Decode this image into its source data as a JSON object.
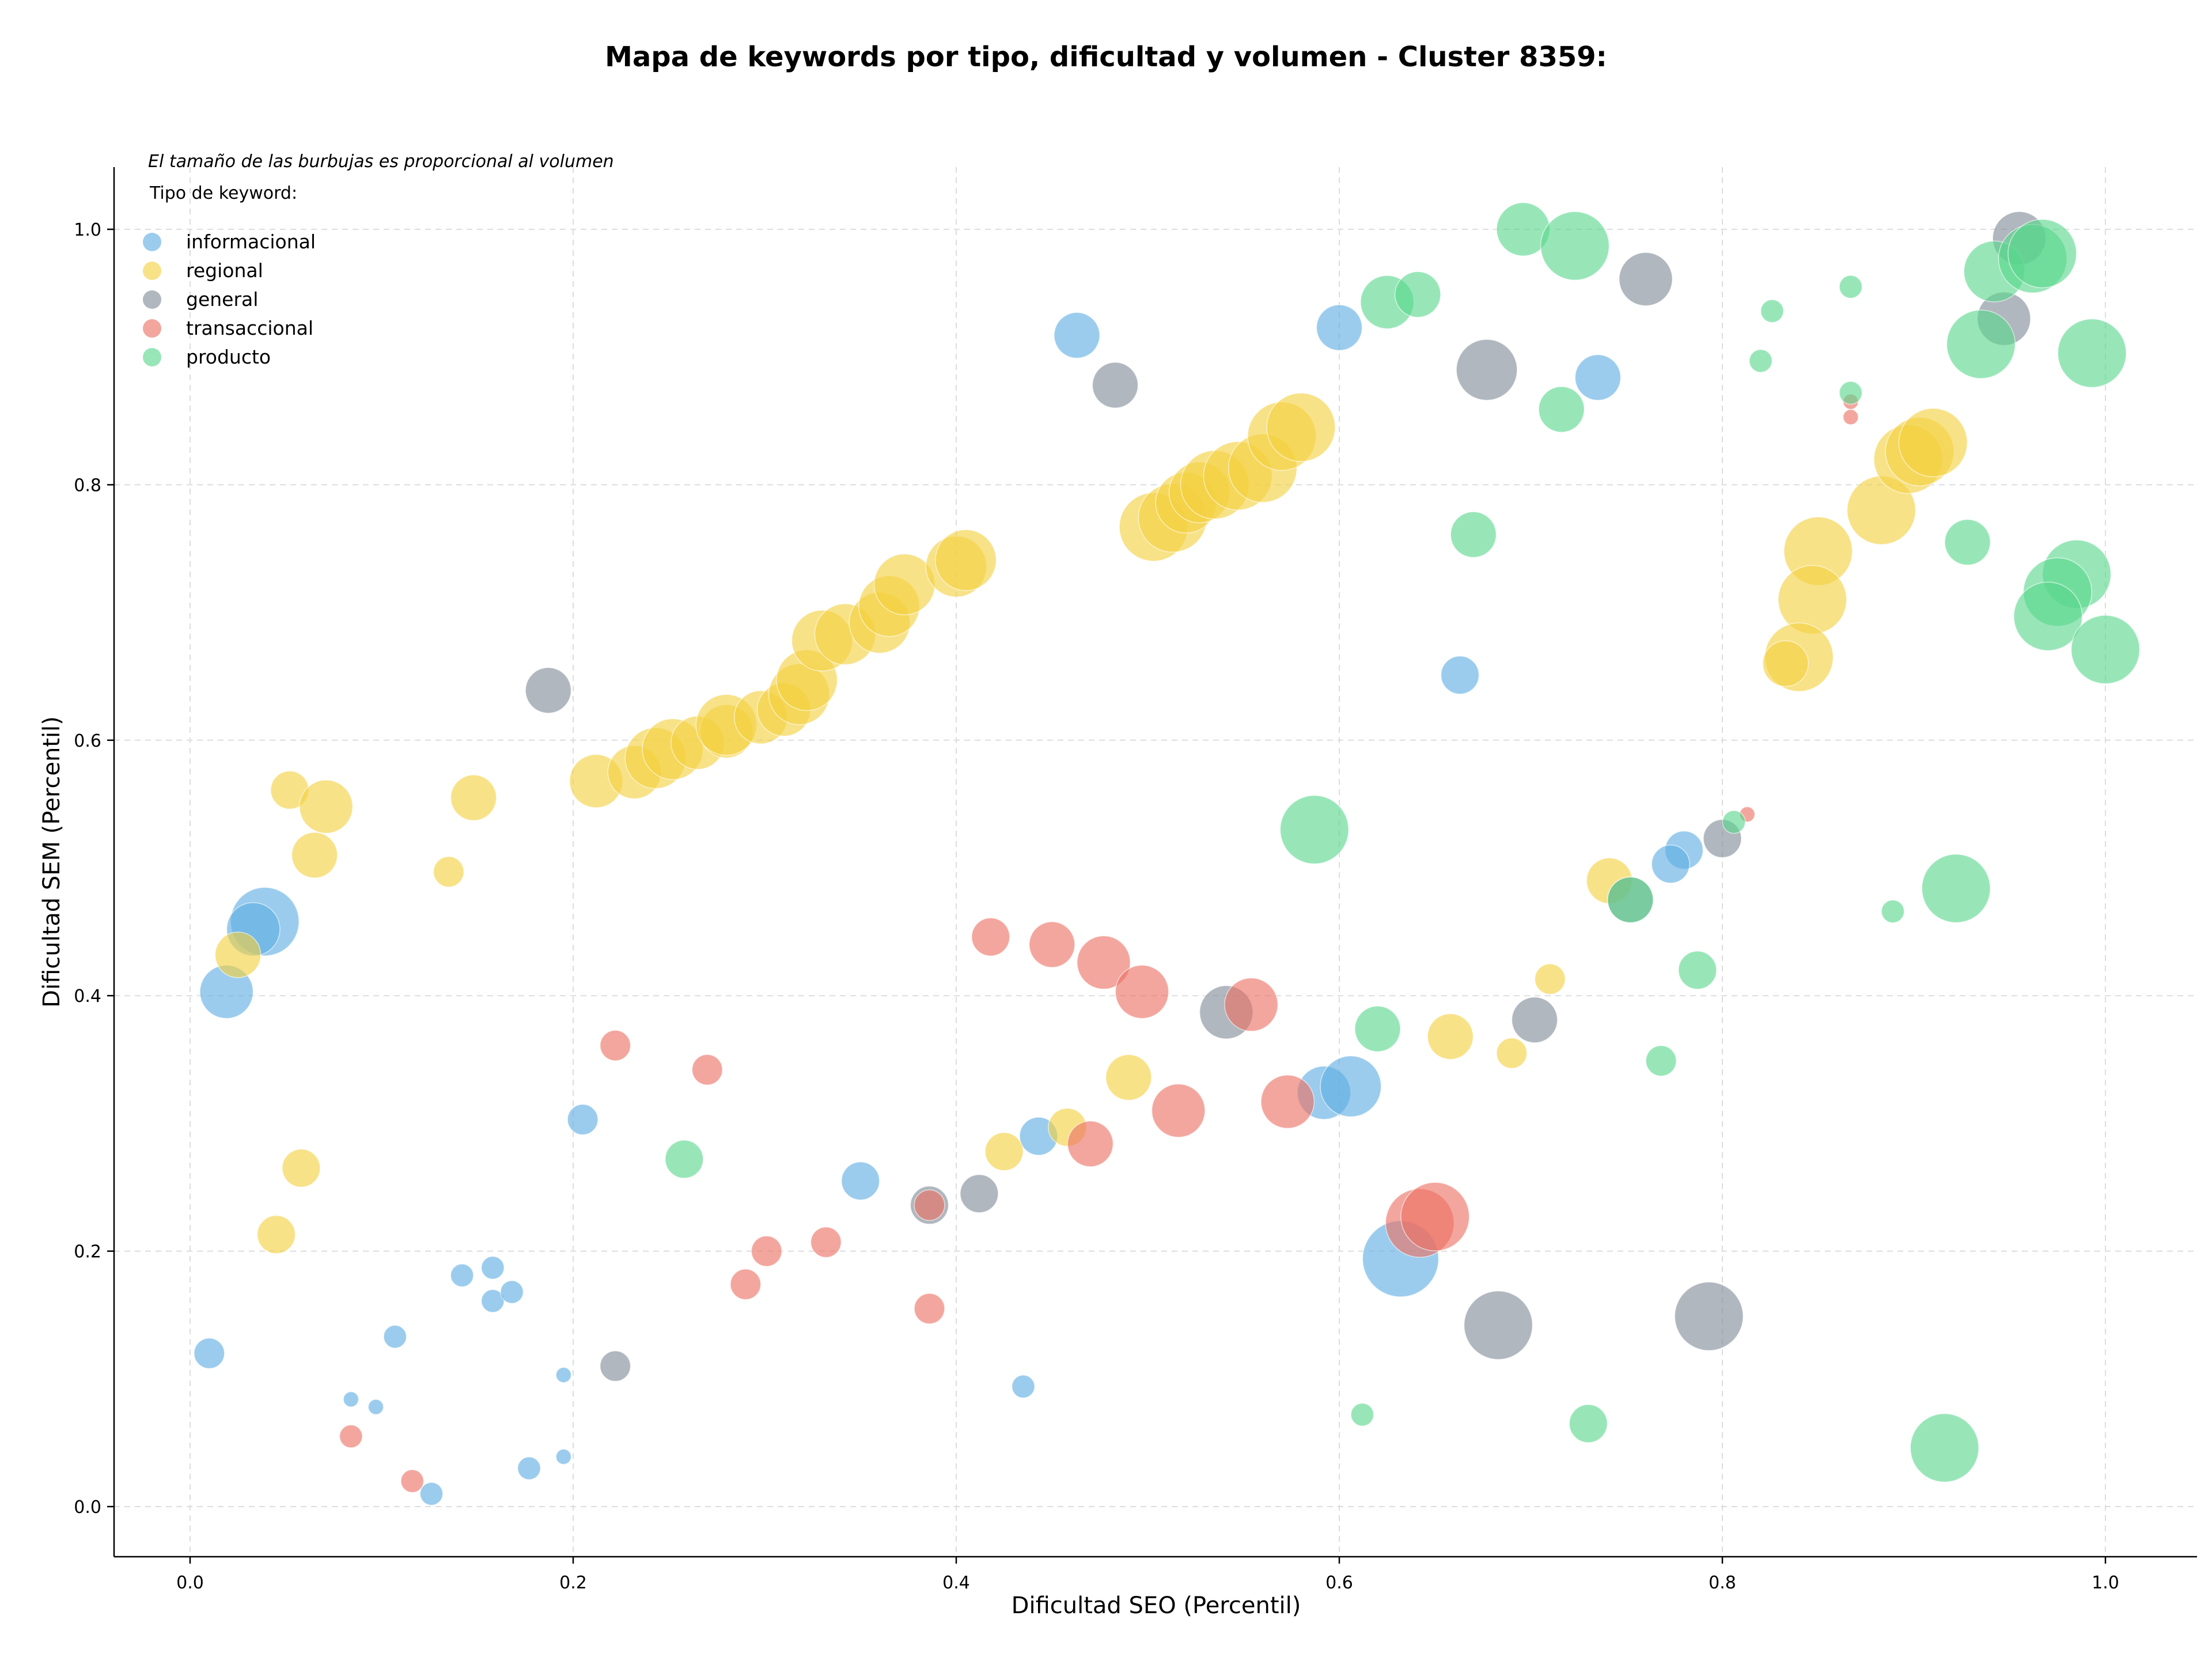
{
  "chart_data": {
    "type": "scatter",
    "title": "Mapa de keywords por tipo, dificultad y volumen - Cluster 8359:",
    "xlabel": "Dificultad SEO (Percentil)",
    "ylabel": "Dificultad SEM (Percentil)",
    "xlim": [
      -0.04,
      1.05
    ],
    "ylim": [
      -0.04,
      1.05
    ],
    "x_ticks": [
      "0.0",
      "0.2",
      "0.4",
      "0.6",
      "0.8",
      "1.0"
    ],
    "y_ticks": [
      "0.0",
      "0.2",
      "0.4",
      "0.6",
      "0.8",
      "1.0"
    ],
    "grid": true,
    "legend_placement": "top-left",
    "legend_note": "El tamaño de las burbujas es proporcional al volumen",
    "legend_title": "Tipo de keyword:",
    "size_unit": "relative volume",
    "series": [
      {
        "name": "informacional",
        "color": "#5DADE2",
        "points": [
          [
            0.463,
            0.917,
            6
          ],
          [
            0.6,
            0.923,
            6
          ],
          [
            0.735,
            0.884,
            6
          ],
          [
            0.663,
            0.651,
            5
          ],
          [
            0.039,
            0.458,
            9
          ],
          [
            0.033,
            0.452,
            7
          ],
          [
            0.019,
            0.403,
            7
          ],
          [
            0.205,
            0.303,
            4
          ],
          [
            0.443,
            0.29,
            5
          ],
          [
            0.592,
            0.324,
            7
          ],
          [
            0.606,
            0.329,
            8
          ],
          [
            0.35,
            0.255,
            5
          ],
          [
            0.01,
            0.12,
            4
          ],
          [
            0.107,
            0.133,
            3
          ],
          [
            0.142,
            0.181,
            3
          ],
          [
            0.158,
            0.187,
            3
          ],
          [
            0.158,
            0.161,
            3
          ],
          [
            0.168,
            0.168,
            3
          ],
          [
            0.084,
            0.084,
            2
          ],
          [
            0.097,
            0.078,
            2
          ],
          [
            0.195,
            0.103,
            2
          ],
          [
            0.195,
            0.039,
            2
          ],
          [
            0.177,
            0.03,
            3
          ],
          [
            0.126,
            0.01,
            3
          ],
          [
            0.435,
            0.094,
            3
          ],
          [
            0.632,
            0.194,
            10
          ],
          [
            0.78,
            0.514,
            5
          ],
          [
            0.773,
            0.503,
            5
          ]
        ]
      },
      {
        "name": "regional",
        "color": "#F4D03F",
        "points": [
          [
            0.052,
            0.561,
            5
          ],
          [
            0.071,
            0.548,
            7
          ],
          [
            0.065,
            0.51,
            6
          ],
          [
            0.148,
            0.555,
            6
          ],
          [
            0.135,
            0.497,
            4
          ],
          [
            0.025,
            0.432,
            6
          ],
          [
            0.058,
            0.265,
            5
          ],
          [
            0.045,
            0.213,
            5
          ],
          [
            0.212,
            0.568,
            7
          ],
          [
            0.232,
            0.575,
            7
          ],
          [
            0.243,
            0.586,
            8
          ],
          [
            0.252,
            0.593,
            8
          ],
          [
            0.265,
            0.598,
            7
          ],
          [
            0.28,
            0.607,
            7
          ],
          [
            0.28,
            0.612,
            8
          ],
          [
            0.298,
            0.618,
            7
          ],
          [
            0.31,
            0.624,
            7
          ],
          [
            0.318,
            0.636,
            8
          ],
          [
            0.322,
            0.647,
            8
          ],
          [
            0.33,
            0.678,
            8
          ],
          [
            0.342,
            0.683,
            8
          ],
          [
            0.36,
            0.692,
            8
          ],
          [
            0.365,
            0.705,
            8
          ],
          [
            0.373,
            0.722,
            8
          ],
          [
            0.4,
            0.736,
            8
          ],
          [
            0.405,
            0.741,
            8
          ],
          [
            0.503,
            0.767,
            9
          ],
          [
            0.513,
            0.774,
            9
          ],
          [
            0.52,
            0.786,
            8
          ],
          [
            0.527,
            0.794,
            8
          ],
          [
            0.535,
            0.8,
            9
          ],
          [
            0.547,
            0.807,
            9
          ],
          [
            0.56,
            0.813,
            9
          ],
          [
            0.57,
            0.838,
            9
          ],
          [
            0.58,
            0.845,
            9
          ],
          [
            0.883,
            0.78,
            9
          ],
          [
            0.897,
            0.82,
            9
          ],
          [
            0.903,
            0.826,
            9
          ],
          [
            0.91,
            0.833,
            9
          ],
          [
            0.85,
            0.748,
            9
          ],
          [
            0.847,
            0.71,
            9
          ],
          [
            0.84,
            0.665,
            9
          ],
          [
            0.833,
            0.66,
            6
          ],
          [
            0.741,
            0.49,
            6
          ],
          [
            0.71,
            0.413,
            4
          ],
          [
            0.658,
            0.368,
            6
          ],
          [
            0.69,
            0.355,
            4
          ],
          [
            0.49,
            0.336,
            6
          ],
          [
            0.425,
            0.278,
            5
          ],
          [
            0.458,
            0.297,
            5
          ]
        ]
      },
      {
        "name": "general",
        "color": "#808B96",
        "points": [
          [
            0.955,
            0.993,
            7
          ],
          [
            0.947,
            0.93,
            7
          ],
          [
            0.76,
            0.961,
            7
          ],
          [
            0.677,
            0.89,
            8
          ],
          [
            0.483,
            0.878,
            6
          ],
          [
            0.187,
            0.639,
            6
          ],
          [
            0.541,
            0.387,
            7
          ],
          [
            0.702,
            0.381,
            6
          ],
          [
            0.8,
            0.523,
            5
          ],
          [
            0.752,
            0.475,
            6
          ],
          [
            0.412,
            0.245,
            5
          ],
          [
            0.386,
            0.236,
            5
          ],
          [
            0.683,
            0.142,
            9
          ],
          [
            0.793,
            0.149,
            9
          ],
          [
            0.222,
            0.11,
            4
          ]
        ]
      },
      {
        "name": "transaccional",
        "color": "#EC7063",
        "points": [
          [
            0.418,
            0.446,
            5
          ],
          [
            0.45,
            0.44,
            6
          ],
          [
            0.477,
            0.426,
            7
          ],
          [
            0.497,
            0.403,
            7
          ],
          [
            0.554,
            0.393,
            7
          ],
          [
            0.222,
            0.361,
            4
          ],
          [
            0.27,
            0.342,
            4
          ],
          [
            0.47,
            0.284,
            6
          ],
          [
            0.516,
            0.31,
            7
          ],
          [
            0.573,
            0.317,
            7
          ],
          [
            0.386,
            0.236,
            4
          ],
          [
            0.301,
            0.2,
            4
          ],
          [
            0.332,
            0.207,
            4
          ],
          [
            0.29,
            0.174,
            4
          ],
          [
            0.386,
            0.155,
            4
          ],
          [
            0.642,
            0.222,
            9
          ],
          [
            0.65,
            0.227,
            9
          ],
          [
            0.084,
            0.055,
            3
          ],
          [
            0.116,
            0.02,
            3
          ],
          [
            0.813,
            0.542,
            2
          ],
          [
            0.867,
            0.853,
            2
          ],
          [
            0.867,
            0.865,
            2
          ]
        ]
      },
      {
        "name": "producto",
        "color": "#58D68D",
        "points": [
          [
            0.696,
            1.0,
            7
          ],
          [
            0.723,
            0.987,
            9
          ],
          [
            0.625,
            0.943,
            7
          ],
          [
            0.641,
            0.949,
            6
          ],
          [
            0.716,
            0.859,
            6
          ],
          [
            0.67,
            0.761,
            6
          ],
          [
            0.826,
            0.936,
            3
          ],
          [
            0.867,
            0.955,
            3
          ],
          [
            0.82,
            0.897,
            3
          ],
          [
            0.867,
            0.872,
            3
          ],
          [
            0.942,
            0.967,
            8
          ],
          [
            0.962,
            0.977,
            9
          ],
          [
            0.967,
            0.981,
            9
          ],
          [
            0.935,
            0.91,
            9
          ],
          [
            0.993,
            0.903,
            9
          ],
          [
            0.928,
            0.755,
            6
          ],
          [
            0.985,
            0.73,
            9
          ],
          [
            0.975,
            0.716,
            9
          ],
          [
            0.97,
            0.697,
            9
          ],
          [
            1.0,
            0.671,
            9
          ],
          [
            0.587,
            0.53,
            9
          ],
          [
            0.922,
            0.484,
            9
          ],
          [
            0.889,
            0.466,
            3
          ],
          [
            0.806,
            0.536,
            3
          ],
          [
            0.752,
            0.475,
            6
          ],
          [
            0.787,
            0.42,
            5
          ],
          [
            0.62,
            0.374,
            6
          ],
          [
            0.768,
            0.349,
            4
          ],
          [
            0.258,
            0.272,
            5
          ],
          [
            0.612,
            0.072,
            3
          ],
          [
            0.73,
            0.065,
            5
          ],
          [
            0.916,
            0.046,
            9
          ]
        ]
      }
    ]
  }
}
